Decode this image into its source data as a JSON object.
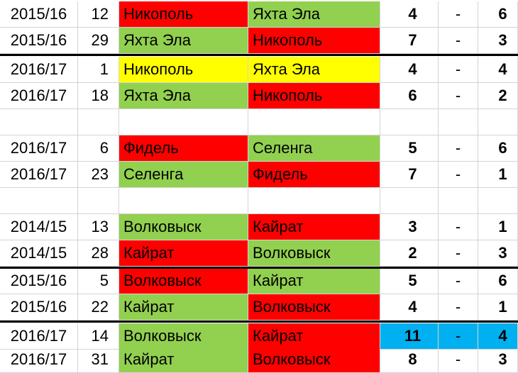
{
  "colors": {
    "red": "#ff0000",
    "green": "#92d050",
    "yellow": "#ffff00",
    "blue": "#00b0f0"
  },
  "rows": [
    {
      "season": "2015/16",
      "round": "12",
      "home": "Никополь",
      "away": "Яхта Эла",
      "home_score": "4",
      "dash": "-",
      "away_score": "6",
      "home_color": "red",
      "away_color": "green",
      "score_color": ""
    },
    {
      "season": "2015/16",
      "round": "29",
      "home": "Яхта Эла",
      "away": "Никополь",
      "home_score": "7",
      "dash": "-",
      "away_score": "3",
      "home_color": "green",
      "away_color": "red",
      "score_color": ""
    },
    {
      "season": "2016/17",
      "round": "1",
      "home": "Никополь",
      "away": "Яхта Эла",
      "home_score": "4",
      "dash": "-",
      "away_score": "4",
      "home_color": "yellow",
      "away_color": "yellow",
      "score_color": ""
    },
    {
      "season": "2016/17",
      "round": "18",
      "home": "Яхта Эла",
      "away": "Никополь",
      "home_score": "6",
      "dash": "-",
      "away_score": "2",
      "home_color": "green",
      "away_color": "red",
      "score_color": ""
    },
    {
      "empty": true
    },
    {
      "season": "2016/17",
      "round": "6",
      "home": "Фидель",
      "away": "Селенга",
      "home_score": "5",
      "dash": "-",
      "away_score": "6",
      "home_color": "red",
      "away_color": "green",
      "score_color": ""
    },
    {
      "season": "2016/17",
      "round": "23",
      "home": "Селенга",
      "away": "Фидель",
      "home_score": "7",
      "dash": "-",
      "away_score": "1",
      "home_color": "green",
      "away_color": "red",
      "score_color": ""
    },
    {
      "empty": true
    },
    {
      "season": "2014/15",
      "round": "13",
      "home": "Волковыск",
      "away": "Кайрат",
      "home_score": "3",
      "dash": "-",
      "away_score": "1",
      "home_color": "green",
      "away_color": "red",
      "score_color": ""
    },
    {
      "season": "2014/15",
      "round": "28",
      "home": "Кайрат",
      "away": "Волковыск",
      "home_score": "2",
      "dash": "-",
      "away_score": "3",
      "home_color": "red",
      "away_color": "green",
      "score_color": ""
    },
    {
      "season": "2015/16",
      "round": "5",
      "home": "Волковыск",
      "away": "Кайрат",
      "home_score": "5",
      "dash": "-",
      "away_score": "6",
      "home_color": "red",
      "away_color": "green",
      "score_color": ""
    },
    {
      "season": "2015/16",
      "round": "22",
      "home": "Кайрат",
      "away": "Волковыск",
      "home_score": "4",
      "dash": "-",
      "away_score": "1",
      "home_color": "green",
      "away_color": "red",
      "score_color": ""
    },
    {
      "season": "2016/17",
      "round": "14",
      "home": "Волковыск",
      "away": "Кайрат",
      "home_score": "11",
      "dash": "-",
      "away_score": "4",
      "home_color": "green",
      "away_color": "red",
      "score_color": "blue"
    },
    {
      "season": "2016/17",
      "round": "31",
      "home": "Кайрат",
      "away": "Волковыск",
      "home_score": "8",
      "dash": "-",
      "away_score": "3",
      "home_color": "green",
      "away_color": "red",
      "score_color": ""
    }
  ],
  "separators_after_rows": [
    1,
    9,
    11
  ]
}
